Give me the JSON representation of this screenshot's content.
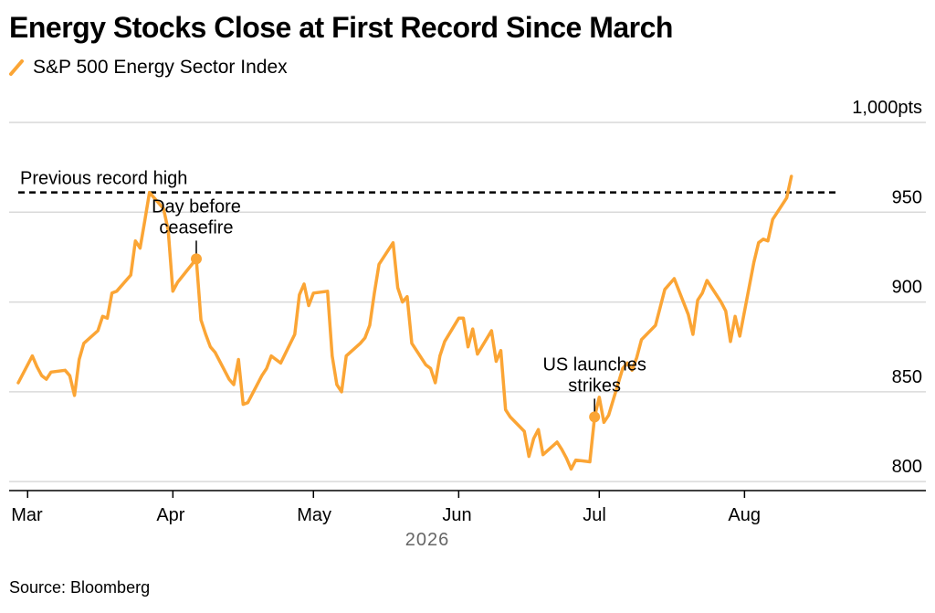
{
  "title": "Energy Stocks Close at First Record Since March",
  "source": "Source: Bloomberg",
  "colors": {
    "series": "#FBA535",
    "grid": "#D9D9D9",
    "axis": "#000000",
    "reference": "#000000"
  },
  "chart_data": {
    "type": "line",
    "title": "Energy Stocks Close at First Record Since March",
    "legend_placement": "top-left",
    "grid": true,
    "ylim": [
      795,
      1000
    ],
    "y_unit": "pts",
    "y_ticks": [
      {
        "value": 800,
        "label": "800"
      },
      {
        "value": 850,
        "label": "850"
      },
      {
        "value": 900,
        "label": "900"
      },
      {
        "value": 950,
        "label": "950"
      },
      {
        "value": 1000,
        "label": "1,000pts"
      }
    ],
    "x_domain": [
      "2026-02-27",
      "2026-08-21"
    ],
    "x_ticks": [
      {
        "date": "2026-03-01",
        "label": "Mar"
      },
      {
        "date": "2026-04-01",
        "label": "Apr"
      },
      {
        "date": "2026-05-01",
        "label": "May"
      },
      {
        "date": "2026-06-01",
        "label": "Jun"
      },
      {
        "date": "2026-07-01",
        "label": "Jul"
      },
      {
        "date": "2026-08-01",
        "label": "Aug"
      }
    ],
    "x_year_label": "2026",
    "series": [
      {
        "name": "S&P 500 Energy Sector Index",
        "points": [
          [
            "2026-02-27",
            855
          ],
          [
            "2026-03-02",
            870
          ],
          [
            "2026-03-03",
            864
          ],
          [
            "2026-03-04",
            859
          ],
          [
            "2026-03-05",
            857
          ],
          [
            "2026-03-06",
            861
          ],
          [
            "2026-03-09",
            862
          ],
          [
            "2026-03-10",
            859
          ],
          [
            "2026-03-11",
            848
          ],
          [
            "2026-03-12",
            868
          ],
          [
            "2026-03-13",
            877
          ],
          [
            "2026-03-16",
            884
          ],
          [
            "2026-03-17",
            892
          ],
          [
            "2026-03-18",
            891
          ],
          [
            "2026-03-19",
            905
          ],
          [
            "2026-03-20",
            906
          ],
          [
            "2026-03-23",
            915
          ],
          [
            "2026-03-24",
            934
          ],
          [
            "2026-03-25",
            930
          ],
          [
            "2026-03-26",
            945
          ],
          [
            "2026-03-27",
            961
          ],
          [
            "2026-03-30",
            952
          ],
          [
            "2026-03-31",
            940
          ],
          [
            "2026-04-01",
            906
          ],
          [
            "2026-04-02",
            911
          ],
          [
            "2026-04-06",
            924
          ],
          [
            "2026-04-07",
            890
          ],
          [
            "2026-04-08",
            882
          ],
          [
            "2026-04-09",
            875
          ],
          [
            "2026-04-10",
            872
          ],
          [
            "2026-04-13",
            857
          ],
          [
            "2026-04-14",
            854
          ],
          [
            "2026-04-15",
            868
          ],
          [
            "2026-04-16",
            843
          ],
          [
            "2026-04-17",
            844
          ],
          [
            "2026-04-20",
            859
          ],
          [
            "2026-04-21",
            863
          ],
          [
            "2026-04-22",
            870
          ],
          [
            "2026-04-23",
            868
          ],
          [
            "2026-04-24",
            866
          ],
          [
            "2026-04-27",
            882
          ],
          [
            "2026-04-28",
            904
          ],
          [
            "2026-04-29",
            910
          ],
          [
            "2026-04-30",
            898
          ],
          [
            "2026-05-01",
            905
          ],
          [
            "2026-05-04",
            906
          ],
          [
            "2026-05-05",
            870
          ],
          [
            "2026-05-06",
            854
          ],
          [
            "2026-05-07",
            850
          ],
          [
            "2026-05-08",
            870
          ],
          [
            "2026-05-11",
            877
          ],
          [
            "2026-05-12",
            880
          ],
          [
            "2026-05-13",
            887
          ],
          [
            "2026-05-14",
            905
          ],
          [
            "2026-05-15",
            921
          ],
          [
            "2026-05-18",
            933
          ],
          [
            "2026-05-19",
            908
          ],
          [
            "2026-05-20",
            900
          ],
          [
            "2026-05-21",
            903
          ],
          [
            "2026-05-22",
            877
          ],
          [
            "2026-05-25",
            865
          ],
          [
            "2026-05-26",
            863
          ],
          [
            "2026-05-27",
            855
          ],
          [
            "2026-05-28",
            870
          ],
          [
            "2026-05-29",
            878
          ],
          [
            "2026-06-01",
            891
          ],
          [
            "2026-06-02",
            891
          ],
          [
            "2026-06-03",
            875
          ],
          [
            "2026-06-04",
            885
          ],
          [
            "2026-06-05",
            871
          ],
          [
            "2026-06-08",
            884
          ],
          [
            "2026-06-09",
            867
          ],
          [
            "2026-06-10",
            873
          ],
          [
            "2026-06-11",
            840
          ],
          [
            "2026-06-12",
            836
          ],
          [
            "2026-06-15",
            828
          ],
          [
            "2026-06-16",
            814
          ],
          [
            "2026-06-17",
            824
          ],
          [
            "2026-06-18",
            829
          ],
          [
            "2026-06-19",
            815
          ],
          [
            "2026-06-22",
            822
          ],
          [
            "2026-06-23",
            818
          ],
          [
            "2026-06-24",
            813
          ],
          [
            "2026-06-25",
            807
          ],
          [
            "2026-06-26",
            812
          ],
          [
            "2026-06-29",
            811
          ],
          [
            "2026-06-30",
            836
          ],
          [
            "2026-07-01",
            847
          ],
          [
            "2026-07-02",
            833
          ],
          [
            "2026-07-03",
            837
          ],
          [
            "2026-07-06",
            863
          ],
          [
            "2026-07-07",
            866
          ],
          [
            "2026-07-08",
            862
          ],
          [
            "2026-07-09",
            869
          ],
          [
            "2026-07-10",
            879
          ],
          [
            "2026-07-13",
            887
          ],
          [
            "2026-07-14",
            897
          ],
          [
            "2026-07-15",
            907
          ],
          [
            "2026-07-16",
            910
          ],
          [
            "2026-07-17",
            913
          ],
          [
            "2026-07-20",
            893
          ],
          [
            "2026-07-21",
            882
          ],
          [
            "2026-07-22",
            901
          ],
          [
            "2026-07-23",
            905
          ],
          [
            "2026-07-24",
            912
          ],
          [
            "2026-07-27",
            900
          ],
          [
            "2026-07-28",
            895
          ],
          [
            "2026-07-29",
            878
          ],
          [
            "2026-07-30",
            892
          ],
          [
            "2026-07-31",
            881
          ],
          [
            "2026-08-03",
            922
          ],
          [
            "2026-08-04",
            933
          ],
          [
            "2026-08-05",
            935
          ],
          [
            "2026-08-06",
            934
          ],
          [
            "2026-08-07",
            946
          ],
          [
            "2026-08-10",
            958
          ],
          [
            "2026-08-11",
            970
          ]
        ]
      }
    ],
    "reference_lines": [
      {
        "label": "Previous record high",
        "value": 961,
        "style": "dashed"
      }
    ],
    "annotations": [
      {
        "text_lines": [
          "Day before",
          "ceasefire"
        ],
        "date": "2026-04-06",
        "value": 924,
        "placement": "above"
      },
      {
        "text_lines": [
          "US launches",
          "strikes"
        ],
        "date": "2026-06-30",
        "value": 836,
        "placement": "above"
      }
    ]
  }
}
